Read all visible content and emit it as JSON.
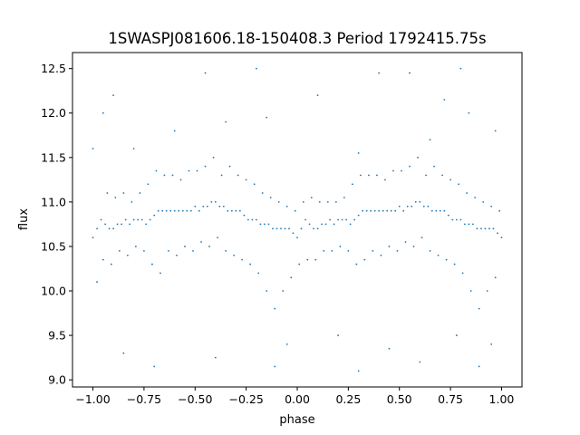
{
  "chart_data": {
    "type": "scatter",
    "title": "1SWASPJ081606.18-150408.3 Period 1792415.75s",
    "xlabel": "phase",
    "ylabel": "flux",
    "xlim": [
      -1.1,
      1.1
    ],
    "ylim": [
      8.92,
      12.68
    ],
    "xticks": [
      {
        "value": -1.0,
        "label": "−1.00"
      },
      {
        "value": -0.75,
        "label": "−0.75"
      },
      {
        "value": -0.5,
        "label": "−0.50"
      },
      {
        "value": -0.25,
        "label": "−0.25"
      },
      {
        "value": 0.0,
        "label": "0.00"
      },
      {
        "value": 0.25,
        "label": "0.25"
      },
      {
        "value": 0.5,
        "label": "0.50"
      },
      {
        "value": 0.75,
        "label": "0.75"
      },
      {
        "value": 1.0,
        "label": "1.00"
      }
    ],
    "yticks": [
      {
        "value": 9.0,
        "label": "9.0"
      },
      {
        "value": 9.5,
        "label": "9.5"
      },
      {
        "value": 10.0,
        "label": "10.0"
      },
      {
        "value": 10.5,
        "label": "10.5"
      },
      {
        "value": 11.0,
        "label": "11.0"
      },
      {
        "value": 11.5,
        "label": "11.5"
      },
      {
        "value": 12.0,
        "label": "12.0"
      },
      {
        "value": 12.5,
        "label": "12.5"
      }
    ],
    "grid": false,
    "marker_color": "#1f77b4",
    "series": [
      {
        "points": [
          [
            -1.0,
            10.6
          ],
          [
            -0.98,
            10.7
          ],
          [
            -0.96,
            10.8
          ],
          [
            -0.94,
            10.75
          ],
          [
            -0.92,
            10.7
          ],
          [
            -0.9,
            10.7
          ],
          [
            -0.88,
            10.75
          ],
          [
            -0.86,
            10.75
          ],
          [
            -0.84,
            10.8
          ],
          [
            -0.82,
            10.75
          ],
          [
            -0.8,
            10.8
          ],
          [
            -0.78,
            10.8
          ],
          [
            -0.76,
            10.8
          ],
          [
            -0.74,
            10.75
          ],
          [
            -0.72,
            10.8
          ],
          [
            -0.7,
            10.85
          ],
          [
            -0.68,
            10.9
          ],
          [
            -0.66,
            10.9
          ],
          [
            -0.64,
            10.9
          ],
          [
            -0.62,
            10.9
          ],
          [
            -0.6,
            10.9
          ],
          [
            -0.58,
            10.9
          ],
          [
            -0.56,
            10.9
          ],
          [
            -0.54,
            10.9
          ],
          [
            -0.52,
            10.9
          ],
          [
            -0.5,
            10.95
          ],
          [
            -0.48,
            10.9
          ],
          [
            -0.46,
            10.95
          ],
          [
            -0.44,
            10.95
          ],
          [
            -0.42,
            11.0
          ],
          [
            -0.4,
            11.0
          ],
          [
            -0.38,
            10.95
          ],
          [
            -0.36,
            10.95
          ],
          [
            -0.34,
            10.9
          ],
          [
            -0.32,
            10.9
          ],
          [
            -0.3,
            10.9
          ],
          [
            -0.28,
            10.9
          ],
          [
            -0.26,
            10.85
          ],
          [
            -0.24,
            10.8
          ],
          [
            -0.22,
            10.8
          ],
          [
            -0.2,
            10.8
          ],
          [
            -0.18,
            10.75
          ],
          [
            -0.16,
            10.75
          ],
          [
            -0.14,
            10.75
          ],
          [
            -0.12,
            10.7
          ],
          [
            -0.1,
            10.7
          ],
          [
            -0.08,
            10.7
          ],
          [
            -0.06,
            10.7
          ],
          [
            -0.04,
            10.7
          ],
          [
            -0.02,
            10.65
          ],
          [
            0.0,
            10.6
          ],
          [
            0.02,
            10.7
          ],
          [
            0.04,
            10.8
          ],
          [
            0.06,
            10.75
          ],
          [
            0.08,
            10.7
          ],
          [
            0.1,
            10.7
          ],
          [
            0.12,
            10.75
          ],
          [
            0.14,
            10.75
          ],
          [
            0.16,
            10.8
          ],
          [
            0.18,
            10.75
          ],
          [
            0.2,
            10.8
          ],
          [
            0.22,
            10.8
          ],
          [
            0.24,
            10.8
          ],
          [
            0.26,
            10.75
          ],
          [
            0.28,
            10.8
          ],
          [
            0.3,
            10.85
          ],
          [
            0.32,
            10.9
          ],
          [
            0.34,
            10.9
          ],
          [
            0.36,
            10.9
          ],
          [
            0.38,
            10.9
          ],
          [
            0.4,
            10.9
          ],
          [
            0.42,
            10.9
          ],
          [
            0.44,
            10.9
          ],
          [
            0.46,
            10.9
          ],
          [
            0.48,
            10.9
          ],
          [
            0.5,
            10.95
          ],
          [
            0.52,
            10.9
          ],
          [
            0.54,
            10.95
          ],
          [
            0.56,
            10.95
          ],
          [
            0.58,
            11.0
          ],
          [
            0.6,
            11.0
          ],
          [
            0.62,
            10.95
          ],
          [
            0.64,
            10.95
          ],
          [
            0.66,
            10.9
          ],
          [
            0.68,
            10.9
          ],
          [
            0.7,
            10.9
          ],
          [
            0.72,
            10.9
          ],
          [
            0.74,
            10.85
          ],
          [
            0.76,
            10.8
          ],
          [
            0.78,
            10.8
          ],
          [
            0.8,
            10.8
          ],
          [
            0.82,
            10.75
          ],
          [
            0.84,
            10.75
          ],
          [
            0.86,
            10.75
          ],
          [
            0.88,
            10.7
          ],
          [
            0.9,
            10.7
          ],
          [
            0.92,
            10.7
          ],
          [
            0.94,
            10.7
          ],
          [
            0.96,
            10.7
          ],
          [
            0.98,
            10.65
          ],
          [
            1.0,
            10.6
          ],
          [
            -0.98,
            10.1
          ],
          [
            -0.95,
            10.35
          ],
          [
            -0.93,
            11.1
          ],
          [
            -0.91,
            10.3
          ],
          [
            -0.89,
            11.05
          ],
          [
            -0.87,
            10.45
          ],
          [
            -0.85,
            11.1
          ],
          [
            -0.83,
            10.4
          ],
          [
            -0.81,
            11.0
          ],
          [
            -0.79,
            10.5
          ],
          [
            -0.77,
            11.1
          ],
          [
            -0.75,
            10.45
          ],
          [
            -0.73,
            11.2
          ],
          [
            -0.71,
            10.3
          ],
          [
            -0.69,
            11.35
          ],
          [
            -0.67,
            10.2
          ],
          [
            -0.65,
            11.3
          ],
          [
            -0.63,
            10.45
          ],
          [
            -0.61,
            11.3
          ],
          [
            -0.59,
            10.4
          ],
          [
            -0.57,
            11.25
          ],
          [
            -0.55,
            10.5
          ],
          [
            -0.53,
            11.35
          ],
          [
            -0.51,
            10.45
          ],
          [
            -0.49,
            11.35
          ],
          [
            -0.47,
            10.55
          ],
          [
            -0.45,
            11.4
          ],
          [
            -0.43,
            10.5
          ],
          [
            -0.41,
            11.5
          ],
          [
            -0.39,
            10.6
          ],
          [
            -0.37,
            11.3
          ],
          [
            -0.35,
            10.45
          ],
          [
            -0.33,
            11.4
          ],
          [
            -0.31,
            10.4
          ],
          [
            -0.29,
            11.3
          ],
          [
            -0.27,
            10.35
          ],
          [
            -0.25,
            11.25
          ],
          [
            -0.23,
            10.3
          ],
          [
            -0.21,
            11.2
          ],
          [
            -0.19,
            10.2
          ],
          [
            -0.17,
            11.1
          ],
          [
            -0.15,
            10.0
          ],
          [
            -0.13,
            11.05
          ],
          [
            -0.11,
            9.8
          ],
          [
            -0.09,
            11.0
          ],
          [
            -0.07,
            10.0
          ],
          [
            -0.05,
            10.95
          ],
          [
            -0.03,
            10.15
          ],
          [
            -0.01,
            10.9
          ],
          [
            0.01,
            10.3
          ],
          [
            0.03,
            11.0
          ],
          [
            0.05,
            10.35
          ],
          [
            0.07,
            11.05
          ],
          [
            0.09,
            10.35
          ],
          [
            0.11,
            11.0
          ],
          [
            0.13,
            10.45
          ],
          [
            0.15,
            11.0
          ],
          [
            0.17,
            10.45
          ],
          [
            0.19,
            11.0
          ],
          [
            0.21,
            10.5
          ],
          [
            0.23,
            11.05
          ],
          [
            0.25,
            10.45
          ],
          [
            0.27,
            11.2
          ],
          [
            0.29,
            10.3
          ],
          [
            0.31,
            11.3
          ],
          [
            0.33,
            10.35
          ],
          [
            0.35,
            11.3
          ],
          [
            0.37,
            10.45
          ],
          [
            0.39,
            11.3
          ],
          [
            0.41,
            10.4
          ],
          [
            0.43,
            11.25
          ],
          [
            0.45,
            10.5
          ],
          [
            0.47,
            11.35
          ],
          [
            0.49,
            10.45
          ],
          [
            0.51,
            11.35
          ],
          [
            0.53,
            10.55
          ],
          [
            0.55,
            11.4
          ],
          [
            0.57,
            10.5
          ],
          [
            0.59,
            11.5
          ],
          [
            0.61,
            10.6
          ],
          [
            0.63,
            11.3
          ],
          [
            0.65,
            10.45
          ],
          [
            0.67,
            11.4
          ],
          [
            0.69,
            10.4
          ],
          [
            0.71,
            11.3
          ],
          [
            0.73,
            10.35
          ],
          [
            0.75,
            11.25
          ],
          [
            0.77,
            10.3
          ],
          [
            0.79,
            11.2
          ],
          [
            0.81,
            10.2
          ],
          [
            0.83,
            11.1
          ],
          [
            0.85,
            10.0
          ],
          [
            0.87,
            11.05
          ],
          [
            0.89,
            9.8
          ],
          [
            0.91,
            11.0
          ],
          [
            0.93,
            10.0
          ],
          [
            0.95,
            10.95
          ],
          [
            0.97,
            10.15
          ],
          [
            0.99,
            10.9
          ],
          [
            -1.0,
            11.6
          ],
          [
            -0.9,
            12.2
          ],
          [
            -0.8,
            11.6
          ],
          [
            -0.6,
            11.8
          ],
          [
            -0.45,
            12.45
          ],
          [
            -0.35,
            11.9
          ],
          [
            -0.2,
            12.5
          ],
          [
            -0.15,
            11.95
          ],
          [
            -0.11,
            9.15
          ],
          [
            -0.05,
            9.4
          ],
          [
            0.1,
            12.2
          ],
          [
            0.2,
            9.5
          ],
          [
            0.3,
            11.55
          ],
          [
            0.4,
            12.45
          ],
          [
            0.55,
            12.45
          ],
          [
            0.65,
            11.7
          ],
          [
            0.72,
            12.15
          ],
          [
            0.8,
            12.5
          ],
          [
            0.84,
            12.0
          ],
          [
            0.89,
            9.15
          ],
          [
            0.95,
            9.4
          ],
          [
            0.97,
            11.8
          ],
          [
            -0.85,
            9.3
          ],
          [
            -0.7,
            9.15
          ],
          [
            -0.4,
            9.25
          ],
          [
            0.3,
            9.1
          ],
          [
            0.45,
            9.35
          ],
          [
            0.6,
            9.2
          ],
          [
            0.78,
            9.5
          ],
          [
            -0.95,
            12.0
          ]
        ]
      }
    ]
  }
}
